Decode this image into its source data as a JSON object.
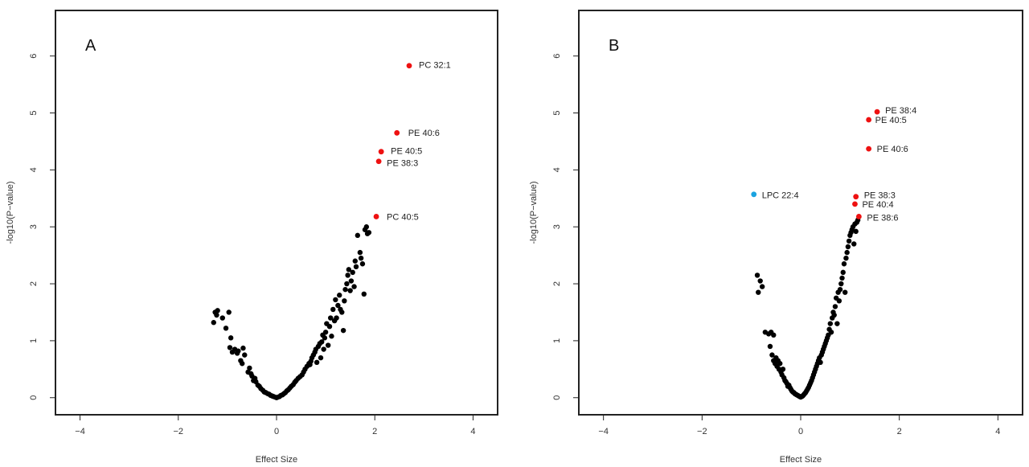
{
  "colors": {
    "base": "#000000",
    "up": "#ee1111",
    "down": "#1aa3e0"
  },
  "chart_data": [
    {
      "type": "scatter",
      "panel_label": "A",
      "xlabel": "Effect Size",
      "ylabel": "-log10(P−value)",
      "xlim": [
        -4.5,
        4.5
      ],
      "ylim": [
        -0.3,
        6.8
      ],
      "xticks": [
        -4,
        -2,
        0,
        2,
        4
      ],
      "yticks": [
        0,
        1,
        2,
        3,
        4,
        5,
        6
      ],
      "xtick_labels": [
        "−4",
        "−2",
        "0",
        "2",
        "4"
      ],
      "ytick_labels": [
        "0",
        "1",
        "2",
        "3",
        "4",
        "5",
        "6"
      ],
      "grid": false,
      "series": [
        {
          "role": "base",
          "color": "#000000",
          "points": [
            [
              -1.28,
              1.32
            ],
            [
              -1.25,
              1.5
            ],
            [
              -1.22,
              1.45
            ],
            [
              -1.2,
              1.53
            ],
            [
              -1.1,
              1.4
            ],
            [
              -1.03,
              1.22
            ],
            [
              -0.97,
              1.5
            ],
            [
              -0.93,
              1.05
            ],
            [
              -0.95,
              0.88
            ],
            [
              -0.9,
              0.8
            ],
            [
              -0.85,
              0.85
            ],
            [
              -0.8,
              0.78
            ],
            [
              -0.78,
              0.82
            ],
            [
              -0.73,
              0.65
            ],
            [
              -0.7,
              0.6
            ],
            [
              -0.68,
              0.87
            ],
            [
              -0.65,
              0.75
            ],
            [
              -0.58,
              0.45
            ],
            [
              -0.55,
              0.52
            ],
            [
              -0.52,
              0.42
            ],
            [
              -0.5,
              0.38
            ],
            [
              -0.47,
              0.3
            ],
            [
              -0.44,
              0.34
            ],
            [
              -0.42,
              0.28
            ],
            [
              -0.38,
              0.22
            ],
            [
              -0.35,
              0.2
            ],
            [
              -0.32,
              0.16
            ],
            [
              -0.28,
              0.13
            ],
            [
              -0.25,
              0.1
            ],
            [
              -0.22,
              0.09
            ],
            [
              -0.18,
              0.07
            ],
            [
              -0.15,
              0.06
            ],
            [
              -0.12,
              0.04
            ],
            [
              -0.09,
              0.03
            ],
            [
              -0.06,
              0.02
            ],
            [
              -0.03,
              0.01
            ],
            [
              0.0,
              0.0
            ],
            [
              0.03,
              0.01
            ],
            [
              0.06,
              0.02
            ],
            [
              0.09,
              0.04
            ],
            [
              0.12,
              0.05
            ],
            [
              0.15,
              0.07
            ],
            [
              0.18,
              0.09
            ],
            [
              0.21,
              0.12
            ],
            [
              0.24,
              0.14
            ],
            [
              0.27,
              0.17
            ],
            [
              0.3,
              0.2
            ],
            [
              0.34,
              0.23
            ],
            [
              0.37,
              0.27
            ],
            [
              0.4,
              0.3
            ],
            [
              0.44,
              0.34
            ],
            [
              0.48,
              0.37
            ],
            [
              0.52,
              0.4
            ],
            [
              0.55,
              0.45
            ],
            [
              0.58,
              0.5
            ],
            [
              0.62,
              0.55
            ],
            [
              0.66,
              0.6
            ],
            [
              0.68,
              0.58
            ],
            [
              0.7,
              0.64
            ],
            [
              0.72,
              0.7
            ],
            [
              0.75,
              0.75
            ],
            [
              0.78,
              0.8
            ],
            [
              0.8,
              0.85
            ],
            [
              0.82,
              0.62
            ],
            [
              0.85,
              0.9
            ],
            [
              0.88,
              0.95
            ],
            [
              0.9,
              0.7
            ],
            [
              0.92,
              0.98
            ],
            [
              0.94,
              1.1
            ],
            [
              0.96,
              0.85
            ],
            [
              0.98,
              1.05
            ],
            [
              1.0,
              1.15
            ],
            [
              1.02,
              1.3
            ],
            [
              1.05,
              0.92
            ],
            [
              1.08,
              1.25
            ],
            [
              1.1,
              1.4
            ],
            [
              1.12,
              1.08
            ],
            [
              1.15,
              1.55
            ],
            [
              1.18,
              1.35
            ],
            [
              1.2,
              1.72
            ],
            [
              1.22,
              1.4
            ],
            [
              1.25,
              1.62
            ],
            [
              1.28,
              1.8
            ],
            [
              1.3,
              1.55
            ],
            [
              1.33,
              1.5
            ],
            [
              1.36,
              1.18
            ],
            [
              1.38,
              1.7
            ],
            [
              1.4,
              1.9
            ],
            [
              1.43,
              2.0
            ],
            [
              1.45,
              2.15
            ],
            [
              1.47,
              2.25
            ],
            [
              1.5,
              1.88
            ],
            [
              1.52,
              2.05
            ],
            [
              1.55,
              2.2
            ],
            [
              1.58,
              1.95
            ],
            [
              1.6,
              2.4
            ],
            [
              1.62,
              2.3
            ],
            [
              1.65,
              2.85
            ],
            [
              1.7,
              2.55
            ],
            [
              1.72,
              2.45
            ],
            [
              1.75,
              2.35
            ],
            [
              1.78,
              1.82
            ],
            [
              1.8,
              2.95
            ],
            [
              1.83,
              3.0
            ],
            [
              1.85,
              2.88
            ],
            [
              1.88,
              2.9
            ]
          ]
        },
        {
          "role": "up",
          "color": "#ee1111",
          "points": [
            [
              2.7,
              5.83
            ],
            [
              2.45,
              4.65
            ],
            [
              2.13,
              4.32
            ],
            [
              2.08,
              4.15
            ],
            [
              2.03,
              3.18
            ]
          ]
        }
      ],
      "labels": [
        {
          "text": "PC 32:1",
          "x": 2.7,
          "y": 5.83
        },
        {
          "text": "PE 40:6",
          "x": 2.45,
          "y": 4.65
        },
        {
          "text": "PE 40:5",
          "x": 2.13,
          "y": 4.32
        },
        {
          "text": "PE 38:3",
          "x": 2.08,
          "y": 4.15
        },
        {
          "text": "PC 40:5",
          "x": 2.03,
          "y": 3.18
        }
      ]
    },
    {
      "type": "scatter",
      "panel_label": "B",
      "xlabel": "Effect Size",
      "ylabel": "-log10(P−value)",
      "xlim": [
        -4.5,
        4.5
      ],
      "ylim": [
        -0.3,
        6.8
      ],
      "xticks": [
        -4,
        -2,
        0,
        2,
        4
      ],
      "yticks": [
        0,
        1,
        2,
        3,
        4,
        5,
        6
      ],
      "xtick_labels": [
        "−4",
        "−2",
        "0",
        "2",
        "4"
      ],
      "ytick_labels": [
        "0",
        "1",
        "2",
        "3",
        "4",
        "5",
        "6"
      ],
      "grid": false,
      "series": [
        {
          "role": "base",
          "color": "#000000",
          "points": [
            [
              -0.88,
              2.15
            ],
            [
              -0.86,
              1.85
            ],
            [
              -0.82,
              2.05
            ],
            [
              -0.78,
              1.95
            ],
            [
              -0.72,
              1.15
            ],
            [
              -0.65,
              1.12
            ],
            [
              -0.6,
              1.15
            ],
            [
              -0.55,
              1.1
            ],
            [
              -0.62,
              0.9
            ],
            [
              -0.58,
              0.75
            ],
            [
              -0.55,
              0.65
            ],
            [
              -0.52,
              0.6
            ],
            [
              -0.5,
              0.7
            ],
            [
              -0.48,
              0.55
            ],
            [
              -0.46,
              0.65
            ],
            [
              -0.44,
              0.5
            ],
            [
              -0.42,
              0.6
            ],
            [
              -0.4,
              0.45
            ],
            [
              -0.38,
              0.4
            ],
            [
              -0.36,
              0.5
            ],
            [
              -0.34,
              0.35
            ],
            [
              -0.32,
              0.3
            ],
            [
              -0.3,
              0.28
            ],
            [
              -0.28,
              0.25
            ],
            [
              -0.26,
              0.2
            ],
            [
              -0.24,
              0.22
            ],
            [
              -0.22,
              0.18
            ],
            [
              -0.2,
              0.15
            ],
            [
              -0.18,
              0.12
            ],
            [
              -0.16,
              0.1
            ],
            [
              -0.14,
              0.09
            ],
            [
              -0.12,
              0.07
            ],
            [
              -0.1,
              0.06
            ],
            [
              -0.08,
              0.05
            ],
            [
              -0.06,
              0.04
            ],
            [
              -0.04,
              0.03
            ],
            [
              -0.02,
              0.02
            ],
            [
              0.0,
              0.01
            ],
            [
              0.02,
              0.02
            ],
            [
              0.04,
              0.03
            ],
            [
              0.06,
              0.05
            ],
            [
              0.08,
              0.07
            ],
            [
              0.1,
              0.09
            ],
            [
              0.12,
              0.12
            ],
            [
              0.14,
              0.15
            ],
            [
              0.16,
              0.18
            ],
            [
              0.18,
              0.22
            ],
            [
              0.2,
              0.26
            ],
            [
              0.22,
              0.3
            ],
            [
              0.24,
              0.35
            ],
            [
              0.26,
              0.4
            ],
            [
              0.28,
              0.45
            ],
            [
              0.3,
              0.5
            ],
            [
              0.32,
              0.55
            ],
            [
              0.34,
              0.6
            ],
            [
              0.36,
              0.65
            ],
            [
              0.38,
              0.7
            ],
            [
              0.4,
              0.62
            ],
            [
              0.42,
              0.75
            ],
            [
              0.44,
              0.8
            ],
            [
              0.46,
              0.85
            ],
            [
              0.48,
              0.9
            ],
            [
              0.5,
              0.95
            ],
            [
              0.52,
              1.0
            ],
            [
              0.54,
              1.05
            ],
            [
              0.56,
              1.1
            ],
            [
              0.58,
              1.2
            ],
            [
              0.6,
              1.3
            ],
            [
              0.62,
              1.15
            ],
            [
              0.64,
              1.4
            ],
            [
              0.66,
              1.5
            ],
            [
              0.68,
              1.45
            ],
            [
              0.7,
              1.6
            ],
            [
              0.72,
              1.75
            ],
            [
              0.74,
              1.3
            ],
            [
              0.76,
              1.85
            ],
            [
              0.78,
              1.7
            ],
            [
              0.8,
              1.9
            ],
            [
              0.82,
              2.0
            ],
            [
              0.84,
              2.1
            ],
            [
              0.86,
              2.2
            ],
            [
              0.88,
              2.35
            ],
            [
              0.9,
              1.85
            ],
            [
              0.92,
              2.45
            ],
            [
              0.94,
              2.55
            ],
            [
              0.96,
              2.65
            ],
            [
              0.98,
              2.75
            ],
            [
              1.0,
              2.85
            ],
            [
              1.02,
              2.9
            ],
            [
              1.04,
              2.95
            ],
            [
              1.06,
              3.0
            ],
            [
              1.08,
              2.7
            ],
            [
              1.1,
              3.05
            ],
            [
              1.12,
              2.92
            ],
            [
              1.14,
              3.08
            ],
            [
              1.16,
              3.12
            ]
          ]
        },
        {
          "role": "up",
          "color": "#ee1111",
          "points": [
            [
              1.55,
              5.02
            ],
            [
              1.38,
              4.88
            ],
            [
              1.38,
              4.37
            ],
            [
              1.12,
              3.53
            ],
            [
              1.1,
              3.4
            ],
            [
              1.18,
              3.18
            ]
          ]
        },
        {
          "role": "down",
          "color": "#1aa3e0",
          "points": [
            [
              -0.95,
              3.57
            ]
          ]
        }
      ],
      "labels": [
        {
          "text": "PE 38:4",
          "x": 1.55,
          "y": 5.02
        },
        {
          "text": "PE 40:5",
          "x": 1.38,
          "y": 4.88
        },
        {
          "text": "PE 40:6",
          "x": 1.38,
          "y": 4.37
        },
        {
          "text": "LPC 22:4",
          "x": -0.95,
          "y": 3.57
        },
        {
          "text": "PE 38:3",
          "x": 1.12,
          "y": 3.53
        },
        {
          "text": "PE 40:4",
          "x": 1.1,
          "y": 3.4
        },
        {
          "text": "PE 38:6",
          "x": 1.18,
          "y": 3.18
        }
      ]
    }
  ]
}
